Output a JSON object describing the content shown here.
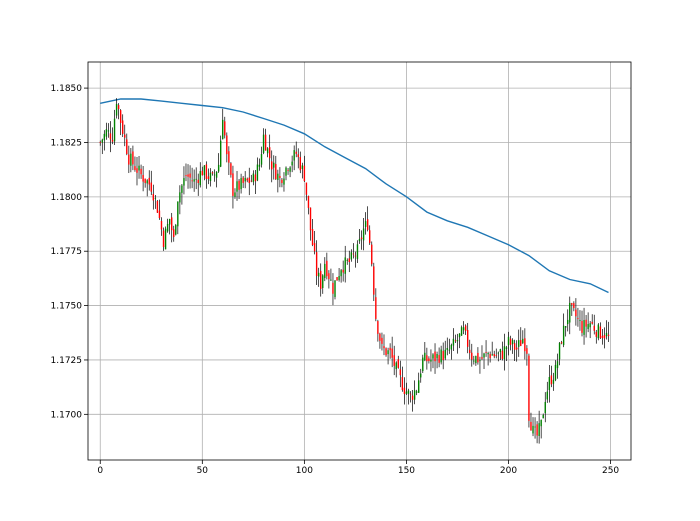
{
  "chart_data": {
    "type": "candlestick",
    "title": "",
    "xlabel": "",
    "ylabel": "",
    "xlim": [
      -6,
      260
    ],
    "ylim": [
      1.1679,
      1.1862
    ],
    "x_ticks": [
      0,
      50,
      100,
      150,
      200,
      250
    ],
    "x_tick_labels": [
      "0",
      "50",
      "100",
      "150",
      "200",
      "250"
    ],
    "y_ticks": [
      1.17,
      1.1725,
      1.175,
      1.1775,
      1.18,
      1.1825,
      1.185
    ],
    "y_tick_labels": [
      "1.1700",
      "1.1725",
      "1.1750",
      "1.1775",
      "1.1800",
      "1.1825",
      "1.1850"
    ],
    "grid": true,
    "colors": {
      "up_body": "#008000",
      "down_body": "#ff0000",
      "wick": "#000000",
      "moving_average": "#1f77b4",
      "grid": "#b0b0b0"
    },
    "close_anchors": [
      [
        0,
        1.1825
      ],
      [
        3,
        1.183
      ],
      [
        6,
        1.1828
      ],
      [
        8,
        1.1845
      ],
      [
        10,
        1.1835
      ],
      [
        14,
        1.1818
      ],
      [
        20,
        1.181
      ],
      [
        25,
        1.1805
      ],
      [
        28,
        1.1795
      ],
      [
        31,
        1.178
      ],
      [
        34,
        1.179
      ],
      [
        36,
        1.178
      ],
      [
        38,
        1.18
      ],
      [
        42,
        1.181
      ],
      [
        46,
        1.1807
      ],
      [
        50,
        1.1812
      ],
      [
        55,
        1.1808
      ],
      [
        58,
        1.1815
      ],
      [
        60,
        1.1838
      ],
      [
        62,
        1.1818
      ],
      [
        65,
        1.1803
      ],
      [
        70,
        1.1806
      ],
      [
        75,
        1.1808
      ],
      [
        78,
        1.1815
      ],
      [
        80,
        1.1828
      ],
      [
        84,
        1.1815
      ],
      [
        88,
        1.1808
      ],
      [
        92,
        1.1815
      ],
      [
        96,
        1.182
      ],
      [
        100,
        1.181
      ],
      [
        103,
        1.1785
      ],
      [
        106,
        1.1765
      ],
      [
        108,
        1.176
      ],
      [
        110,
        1.177
      ],
      [
        114,
        1.1758
      ],
      [
        118,
        1.1768
      ],
      [
        122,
        1.177
      ],
      [
        126,
        1.1775
      ],
      [
        129,
        1.1785
      ],
      [
        131,
        1.1788
      ],
      [
        133,
        1.177
      ],
      [
        135,
        1.1745
      ],
      [
        138,
        1.173
      ],
      [
        142,
        1.1728
      ],
      [
        146,
        1.1718
      ],
      [
        149,
        1.1712
      ],
      [
        152,
        1.1708
      ],
      [
        155,
        1.1712
      ],
      [
        158,
        1.1725
      ],
      [
        162,
        1.1725
      ],
      [
        166,
        1.1727
      ],
      [
        170,
        1.1728
      ],
      [
        174,
        1.1733
      ],
      [
        178,
        1.1738
      ],
      [
        182,
        1.1727
      ],
      [
        186,
        1.1725
      ],
      [
        190,
        1.1728
      ],
      [
        194,
        1.1727
      ],
      [
        197,
        1.1728
      ],
      [
        200,
        1.1733
      ],
      [
        204,
        1.173
      ],
      [
        207,
        1.1735
      ],
      [
        209,
        1.173
      ],
      [
        210,
        1.17
      ],
      [
        212,
        1.1692
      ],
      [
        214,
        1.169
      ],
      [
        216,
        1.1695
      ],
      [
        218,
        1.1708
      ],
      [
        220,
        1.1715
      ],
      [
        223,
        1.172
      ],
      [
        226,
        1.1735
      ],
      [
        228,
        1.1742
      ],
      [
        230,
        1.1748
      ],
      [
        233,
        1.1745
      ],
      [
        236,
        1.174
      ],
      [
        240,
        1.1742
      ],
      [
        244,
        1.1738
      ],
      [
        247,
        1.1737
      ],
      [
        249,
        1.1735
      ]
    ],
    "moving_average": [
      [
        0,
        1.1843
      ],
      [
        10,
        1.1845
      ],
      [
        20,
        1.1845
      ],
      [
        30,
        1.1844
      ],
      [
        40,
        1.1843
      ],
      [
        50,
        1.1842
      ],
      [
        60,
        1.1841
      ],
      [
        70,
        1.1839
      ],
      [
        80,
        1.1836
      ],
      [
        90,
        1.1833
      ],
      [
        100,
        1.1829
      ],
      [
        110,
        1.1823
      ],
      [
        120,
        1.1818
      ],
      [
        130,
        1.1813
      ],
      [
        140,
        1.1806
      ],
      [
        150,
        1.18
      ],
      [
        160,
        1.1793
      ],
      [
        170,
        1.1789
      ],
      [
        180,
        1.1786
      ],
      [
        190,
        1.1782
      ],
      [
        200,
        1.1778
      ],
      [
        210,
        1.1773
      ],
      [
        220,
        1.1766
      ],
      [
        230,
        1.1762
      ],
      [
        240,
        1.176
      ],
      [
        249,
        1.1756
      ]
    ]
  }
}
